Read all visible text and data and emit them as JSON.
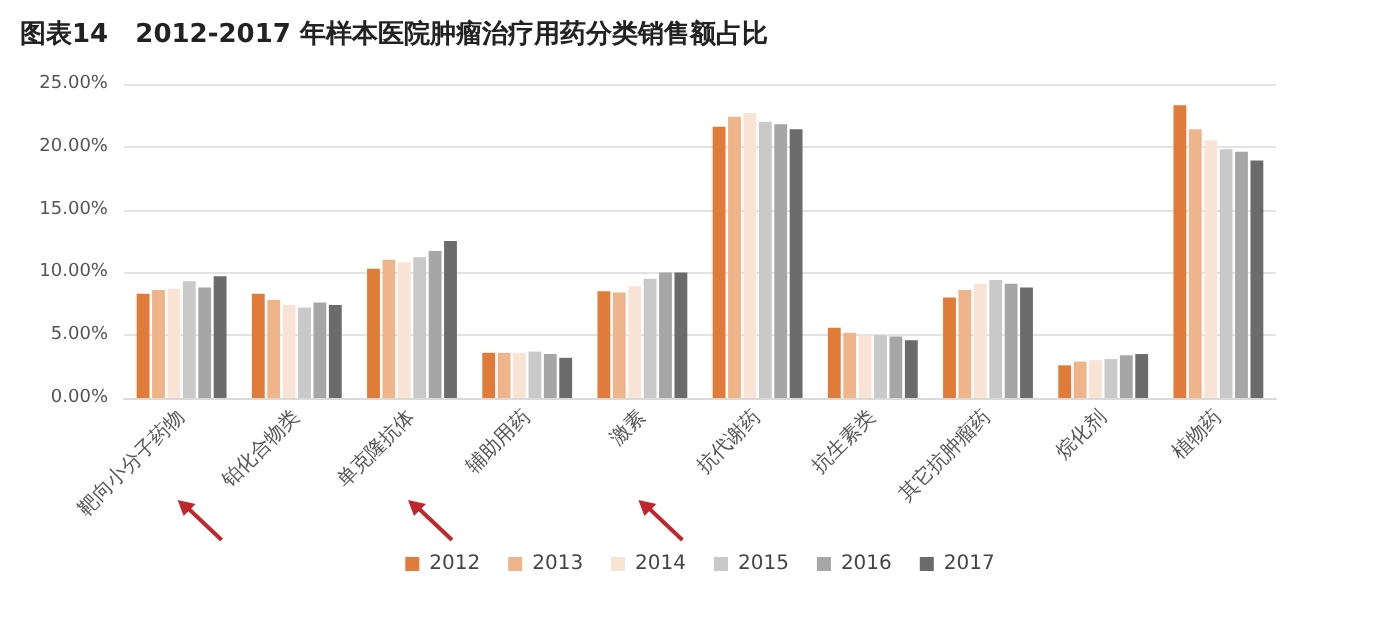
{
  "chart_data": {
    "type": "bar",
    "title": "图表14   2012-2017 年样本医院肿瘤治疗用药分类销售额占比",
    "categories": [
      "靶向小分子药物",
      "铂化合物类",
      "单克隆抗体",
      "辅助用药",
      "激素",
      "抗代谢药",
      "抗生素类",
      "其它抗肿瘤药",
      "烷化剂",
      "植物药"
    ],
    "series": [
      {
        "name": "2012",
        "color": "#e07b39",
        "values": [
          8.3,
          8.3,
          10.3,
          3.6,
          8.5,
          21.6,
          5.6,
          8.0,
          2.6,
          23.3
        ]
      },
      {
        "name": "2013",
        "color": "#f0b48a",
        "values": [
          8.6,
          7.8,
          11.0,
          3.6,
          8.4,
          22.4,
          5.2,
          8.6,
          2.9,
          21.4
        ]
      },
      {
        "name": "2014",
        "color": "#f8e3d5",
        "values": [
          8.7,
          7.4,
          10.8,
          3.6,
          8.9,
          22.7,
          5.0,
          9.1,
          3.0,
          20.5
        ]
      },
      {
        "name": "2015",
        "color": "#c9c9c9",
        "values": [
          9.3,
          7.2,
          11.2,
          3.7,
          9.5,
          22.0,
          5.0,
          9.4,
          3.1,
          19.8
        ]
      },
      {
        "name": "2016",
        "color": "#a6a6a6",
        "values": [
          8.8,
          7.6,
          11.7,
          3.5,
          10.0,
          21.8,
          4.9,
          9.1,
          3.4,
          19.6
        ]
      },
      {
        "name": "2017",
        "color": "#6b6b6b",
        "values": [
          9.7,
          7.4,
          12.5,
          3.2,
          10.0,
          21.4,
          4.6,
          8.8,
          3.5,
          18.9
        ]
      }
    ],
    "ylim": [
      0,
      25
    ],
    "yticks": [
      {
        "value": 0,
        "label": "0.00%"
      },
      {
        "value": 5,
        "label": "5.00%"
      },
      {
        "value": 10,
        "label": "10.00%"
      },
      {
        "value": 15,
        "label": "15.00%"
      },
      {
        "value": 20,
        "label": "20.00%"
      },
      {
        "value": 25,
        "label": "25.00%"
      }
    ],
    "grid": "y",
    "legend": "bottom"
  }
}
